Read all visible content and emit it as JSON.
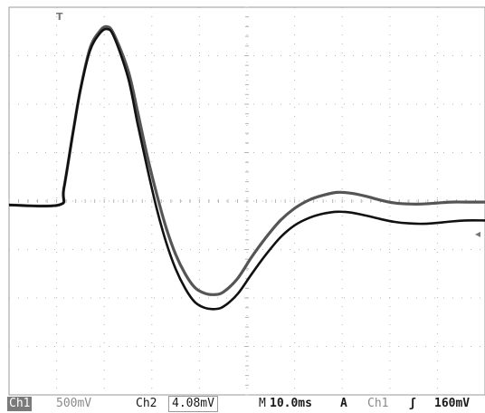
{
  "chart_data": {
    "type": "line",
    "title": "",
    "xlabel": "",
    "ylabel": "",
    "grid": true,
    "x_divisions": 10,
    "y_divisions": 8,
    "x_unit": "ms",
    "xlim": [
      0,
      100
    ],
    "ylim": [
      -4,
      4
    ],
    "series": [
      {
        "color": "#555555",
        "values": [
          [
            0,
            -0.08
          ],
          [
            10.5,
            -0.08
          ],
          [
            11.5,
            0.25
          ],
          [
            13.5,
            1.45
          ],
          [
            15,
            2.3
          ],
          [
            17,
            3.15
          ],
          [
            19,
            3.5
          ],
          [
            20.5,
            3.6
          ],
          [
            22,
            3.45
          ],
          [
            25,
            2.7
          ],
          [
            27,
            1.85
          ],
          [
            29,
            0.95
          ],
          [
            31,
            0.15
          ],
          [
            33,
            -0.55
          ],
          [
            35,
            -1.1
          ],
          [
            37,
            -1.5
          ],
          [
            39,
            -1.78
          ],
          [
            41,
            -1.9
          ],
          [
            43,
            -1.93
          ],
          [
            45,
            -1.88
          ],
          [
            48,
            -1.6
          ],
          [
            51,
            -1.15
          ],
          [
            54,
            -0.75
          ],
          [
            57,
            -0.4
          ],
          [
            60,
            -0.15
          ],
          [
            63,
            0.02
          ],
          [
            66,
            0.12
          ],
          [
            69,
            0.18
          ],
          [
            72,
            0.16
          ],
          [
            75,
            0.1
          ],
          [
            78,
            0.02
          ],
          [
            81,
            -0.04
          ],
          [
            84,
            -0.06
          ],
          [
            87,
            -0.06
          ],
          [
            90,
            -0.04
          ],
          [
            93,
            -0.02
          ],
          [
            96,
            -0.02
          ],
          [
            100,
            -0.02
          ]
        ]
      },
      {
        "color": "#111111",
        "values": [
          [
            0,
            -0.08
          ],
          [
            10.5,
            -0.08
          ],
          [
            11.5,
            0.25
          ],
          [
            13.5,
            1.45
          ],
          [
            15,
            2.3
          ],
          [
            17,
            3.1
          ],
          [
            19,
            3.45
          ],
          [
            20.5,
            3.55
          ],
          [
            22,
            3.4
          ],
          [
            25,
            2.55
          ],
          [
            27,
            1.6
          ],
          [
            29,
            0.7
          ],
          [
            31,
            -0.15
          ],
          [
            33,
            -0.85
          ],
          [
            35,
            -1.4
          ],
          [
            37,
            -1.8
          ],
          [
            39,
            -2.08
          ],
          [
            41,
            -2.2
          ],
          [
            43,
            -2.23
          ],
          [
            45,
            -2.18
          ],
          [
            48,
            -1.92
          ],
          [
            51,
            -1.5
          ],
          [
            54,
            -1.1
          ],
          [
            57,
            -0.75
          ],
          [
            60,
            -0.5
          ],
          [
            63,
            -0.35
          ],
          [
            66,
            -0.26
          ],
          [
            69,
            -0.22
          ],
          [
            72,
            -0.24
          ],
          [
            75,
            -0.3
          ],
          [
            78,
            -0.37
          ],
          [
            81,
            -0.43
          ],
          [
            84,
            -0.46
          ],
          [
            87,
            -0.47
          ],
          [
            90,
            -0.45
          ],
          [
            93,
            -0.42
          ],
          [
            96,
            -0.4
          ],
          [
            100,
            -0.4
          ]
        ]
      }
    ]
  },
  "markers": {
    "trigger_position_label": "T",
    "trigger_level_symbol": "◂"
  },
  "readout": {
    "ch1_label": "Ch1",
    "ch1_scale": "500mV",
    "ch2_label": "Ch2",
    "ch2_scale": "4.08mV",
    "timebase_prefix": "M",
    "timebase": "10.0ms",
    "acq_mode": "A",
    "trigger_source": "Ch1",
    "trigger_slope_symbol": "ʃ",
    "trigger_level": "160mV"
  },
  "colors": {
    "grid_dots": "#b5b5b5",
    "frame": "#9a9a9a",
    "trace_ch2": "#555555",
    "trace_ch1": "#111111"
  }
}
